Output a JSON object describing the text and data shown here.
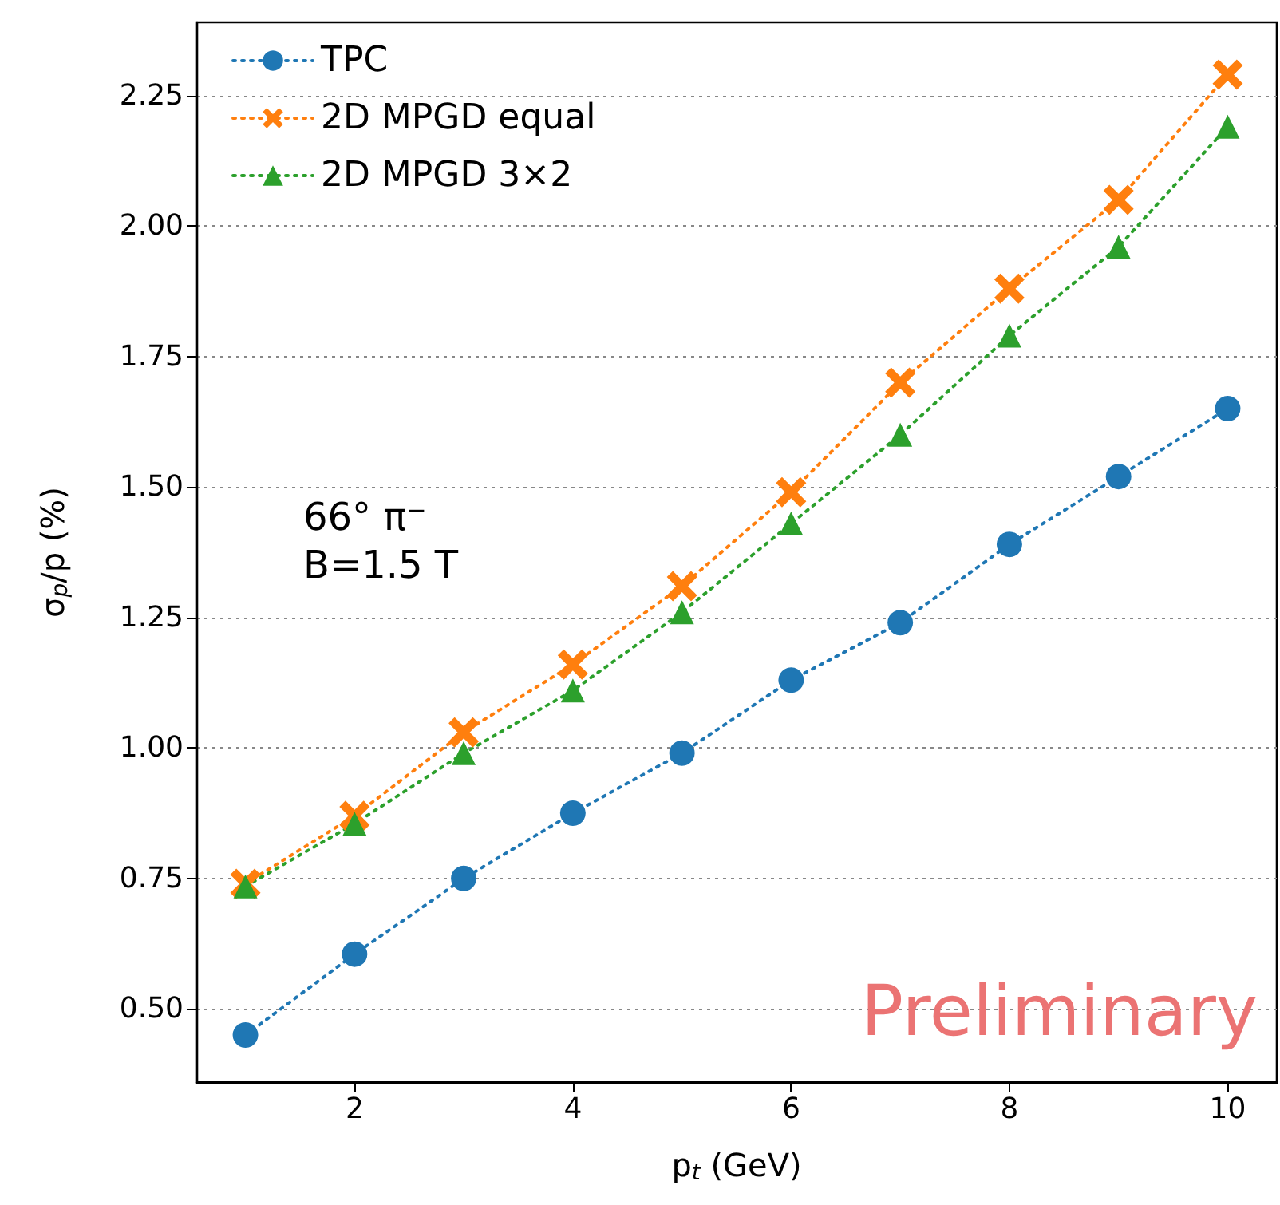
{
  "chart_data": {
    "type": "line",
    "xlabel": "p$_{t}$ (GeV)",
    "ylabel": "σ$_{p}$/p (%)",
    "x": [
      1,
      2,
      3,
      4,
      5,
      6,
      7,
      8,
      9,
      10
    ],
    "series": [
      {
        "name": "TPC",
        "color": "#1f77b4",
        "marker": "circle",
        "values": [
          0.45,
          0.605,
          0.75,
          0.875,
          0.99,
          1.13,
          1.24,
          1.39,
          1.52,
          1.65
        ]
      },
      {
        "name": "2D MPGD equal",
        "color": "#ff7f0e",
        "marker": "cross",
        "values": [
          0.74,
          0.87,
          1.03,
          1.16,
          1.31,
          1.49,
          1.7,
          1.88,
          2.05,
          2.29
        ]
      },
      {
        "name": "2D MPGD 3×2",
        "color": "#2ca02c",
        "marker": "triangle",
        "values": [
          0.735,
          0.855,
          0.99,
          1.11,
          1.26,
          1.43,
          1.6,
          1.79,
          1.96,
          2.19
        ]
      }
    ],
    "xlim": [
      0.55,
      10.45
    ],
    "xticks": [
      2,
      4,
      6,
      8,
      10
    ],
    "ylim": [
      0.36,
      2.39
    ],
    "yticks": [
      {
        "value": 0.5,
        "label": "0.50"
      },
      0.75,
      {
        "value": 1.0,
        "label": "1.00"
      },
      1.25,
      {
        "value": 1.5,
        "label": "1.50"
      },
      1.75,
      {
        "value": 2.0,
        "label": "2.00"
      },
      2.25
    ],
    "grid": "y",
    "legend": "top left",
    "line_style": "dotted",
    "annotations": [
      "66° π⁻",
      "B=1.5 T",
      "Preliminary"
    ]
  }
}
